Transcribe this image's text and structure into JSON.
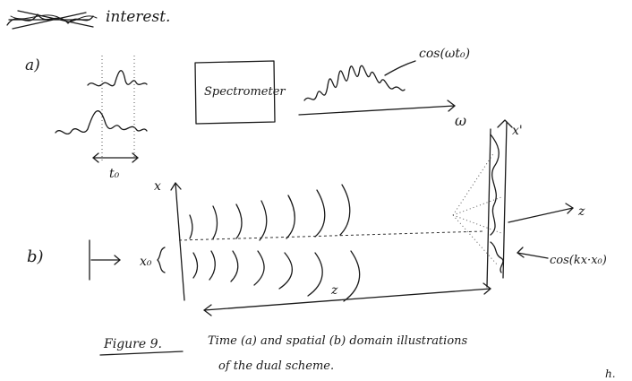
{
  "header": {
    "text": "interest."
  },
  "part_a": {
    "label": "a)",
    "box_label": "Spectrometer",
    "time_label": "t₀",
    "cos_label": "cos(ωt₀)",
    "omega_label": "ω"
  },
  "part_b": {
    "label": "b)",
    "x_label": "x",
    "x0_label": "x₀",
    "z_label": "z",
    "z_axis_label": "z",
    "xprime_label": "x'",
    "cos_label": "cos(kx·x₀)"
  },
  "caption": {
    "figure_label": "Figure 9.",
    "line1": "Time (a) and spatial (b) domain illustrations",
    "line2": "of the dual scheme."
  },
  "corner_text": "h."
}
